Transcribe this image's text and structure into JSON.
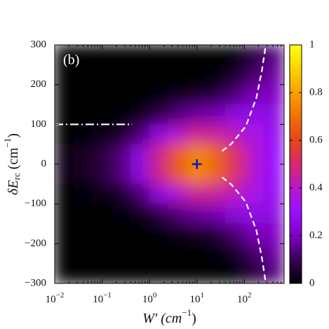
{
  "chart_data": {
    "type": "heatmap",
    "panel_label": "(b)",
    "x_label_parts": [
      "W′ (cm",
      "−1",
      ")"
    ],
    "y_label_parts": [
      "δE",
      "rc",
      " (cm",
      "−1",
      ")"
    ],
    "x_scale": "log",
    "xlim": [
      0.01,
      690
    ],
    "ylim": [
      -300,
      300
    ],
    "xticks": [
      {
        "value": 0.01,
        "label": "10",
        "exponent": "−2"
      },
      {
        "value": 0.1,
        "label": "10",
        "exponent": "−1"
      },
      {
        "value": 1,
        "label": "10",
        "exponent": "0"
      },
      {
        "value": 10,
        "label": "10",
        "exponent": "1"
      },
      {
        "value": 100,
        "label": "10",
        "exponent": "2"
      }
    ],
    "yticks": [
      {
        "value": -300,
        "label": "−300"
      },
      {
        "value": -200,
        "label": "−200"
      },
      {
        "value": -100,
        "label": "−100"
      },
      0,
      100,
      200,
      300
    ],
    "x": [
      0.016,
      0.04,
      0.1,
      0.25,
      0.63,
      1.6,
      4,
      10,
      25,
      63,
      160,
      400
    ],
    "y": [
      275,
      225,
      175,
      125,
      75,
      25,
      -25,
      -75,
      -125,
      -175,
      -225,
      -275
    ],
    "z": [
      [
        0,
        0,
        0,
        0,
        0,
        0,
        0,
        0,
        0,
        0.01,
        0.06,
        0.13
      ],
      [
        0,
        0,
        0,
        0,
        0,
        0,
        0,
        0,
        0.01,
        0.04,
        0.11,
        0.17
      ],
      [
        0,
        0,
        0,
        0,
        0,
        0.01,
        0.02,
        0.04,
        0.06,
        0.12,
        0.19,
        0.21
      ],
      [
        0,
        0,
        0,
        0.01,
        0.02,
        0.07,
        0.13,
        0.17,
        0.19,
        0.25,
        0.27,
        0.25
      ],
      [
        0,
        0.01,
        0.02,
        0.04,
        0.12,
        0.25,
        0.38,
        0.46,
        0.45,
        0.41,
        0.35,
        0.28
      ],
      [
        0.02,
        0.03,
        0.07,
        0.13,
        0.25,
        0.47,
        0.65,
        0.75,
        0.68,
        0.53,
        0.39,
        0.3
      ],
      [
        0.02,
        0.03,
        0.07,
        0.13,
        0.25,
        0.47,
        0.65,
        0.75,
        0.68,
        0.53,
        0.39,
        0.3
      ],
      [
        0,
        0.01,
        0.02,
        0.04,
        0.12,
        0.25,
        0.38,
        0.46,
        0.45,
        0.41,
        0.35,
        0.28
      ],
      [
        0,
        0,
        0,
        0.01,
        0.02,
        0.07,
        0.13,
        0.17,
        0.19,
        0.25,
        0.27,
        0.25
      ],
      [
        0,
        0,
        0,
        0,
        0,
        0.01,
        0.02,
        0.04,
        0.06,
        0.12,
        0.19,
        0.21
      ],
      [
        0,
        0,
        0,
        0,
        0,
        0,
        0,
        0,
        0.01,
        0.04,
        0.11,
        0.17
      ],
      [
        0,
        0,
        0,
        0,
        0,
        0,
        0,
        0,
        0,
        0.01,
        0.06,
        0.13
      ]
    ],
    "colorbar": {
      "lim": [
        0,
        1
      ],
      "ticks": [
        0,
        0.2,
        0.4,
        0.6,
        0.8,
        1
      ]
    },
    "colormap": [
      {
        "value": 0,
        "color": "#000000"
      },
      {
        "value": 0.1,
        "color": "#3c0058"
      },
      {
        "value": 0.2,
        "color": "#8000c0"
      },
      {
        "value": 0.3,
        "color": "#9a10ff"
      },
      {
        "value": 0.4,
        "color": "#b818c8"
      },
      {
        "value": 0.5,
        "color": "#d82870"
      },
      {
        "value": 0.6,
        "color": "#e84418"
      },
      {
        "value": 0.7,
        "color": "#f07008"
      },
      {
        "value": 0.8,
        "color": "#f8a000"
      },
      {
        "value": 0.9,
        "color": "#fcd400"
      },
      {
        "value": 1,
        "color": "#ffff10"
      }
    ],
    "markers": [
      {
        "x": 10,
        "y": 0,
        "color": "#0a18e0"
      }
    ],
    "lines": [
      {
        "style": "dashed",
        "color": "#ffffff",
        "x": [
          34,
          53,
          107,
          179,
          235,
          278
        ],
        "y": [
          33,
          51,
          95,
          166,
          236,
          293
        ]
      },
      {
        "style": "dashed",
        "color": "#ffffff",
        "x": [
          34,
          53,
          107,
          179,
          235,
          278
        ],
        "y": [
          -33,
          -51,
          -95,
          -166,
          -236,
          -293
        ]
      },
      {
        "style": "dashdot",
        "color": "#ffffff",
        "x": [
          0.01,
          0.43
        ],
        "y": [
          100,
          100
        ]
      }
    ]
  }
}
